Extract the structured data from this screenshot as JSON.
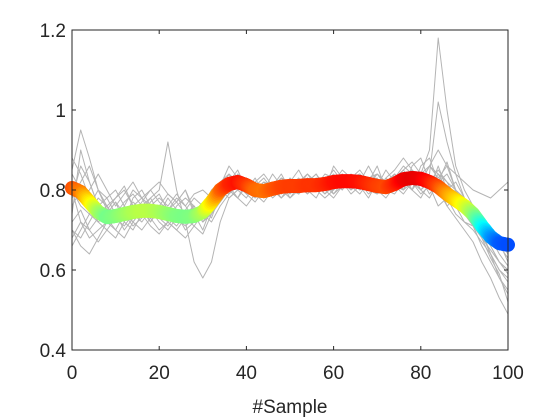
{
  "chart_data": {
    "type": "line",
    "xlabel": "#Sample",
    "ylabel": "",
    "xlim": [
      0,
      100
    ],
    "ylim": [
      0.4,
      1.2
    ],
    "xticks": [
      0,
      20,
      40,
      60,
      80,
      100
    ],
    "yticks": [
      0.4,
      0.6,
      0.8,
      1.0,
      1.2
    ],
    "xtick_labels": [
      "0",
      "20",
      "40",
      "60",
      "80",
      "100"
    ],
    "ytick_labels": [
      "0.4",
      "0.6",
      "0.8",
      "1",
      "1.2"
    ],
    "grid": false,
    "box": true,
    "background_series_color": "#b4b4b4",
    "mean_series": {
      "colormap": "jet (value-mapped)",
      "x": [
        0,
        2,
        4,
        6,
        8,
        10,
        12,
        14,
        16,
        18,
        20,
        22,
        24,
        26,
        28,
        30,
        32,
        34,
        36,
        38,
        40,
        42,
        44,
        46,
        48,
        50,
        52,
        54,
        56,
        58,
        60,
        62,
        64,
        66,
        68,
        70,
        72,
        74,
        76,
        78,
        80,
        82,
        84,
        86,
        88,
        90,
        92,
        94,
        96,
        98,
        100
      ],
      "values": [
        0.805,
        0.795,
        0.77,
        0.745,
        0.732,
        0.735,
        0.74,
        0.745,
        0.748,
        0.748,
        0.745,
        0.74,
        0.735,
        0.733,
        0.735,
        0.745,
        0.77,
        0.8,
        0.815,
        0.82,
        0.812,
        0.8,
        0.797,
        0.803,
        0.808,
        0.81,
        0.81,
        0.812,
        0.812,
        0.815,
        0.82,
        0.822,
        0.822,
        0.82,
        0.815,
        0.81,
        0.807,
        0.815,
        0.827,
        0.83,
        0.828,
        0.82,
        0.808,
        0.79,
        0.775,
        0.76,
        0.74,
        0.71,
        0.683,
        0.667,
        0.663
      ]
    },
    "individual_series": [
      {
        "values": [
          0.74,
          0.9,
          0.82,
          0.76,
          0.74,
          0.77,
          0.72,
          0.78,
          0.8,
          0.76,
          0.74,
          0.78,
          0.75,
          0.73,
          0.76,
          0.72,
          0.75,
          0.81,
          0.86,
          0.83,
          0.8,
          0.79,
          0.81,
          0.82,
          0.79,
          0.83,
          0.8,
          0.82,
          0.84,
          0.8,
          0.86,
          0.83,
          0.8,
          0.83,
          0.82,
          0.86,
          0.8,
          0.82,
          0.84,
          0.8,
          0.86,
          0.88,
          0.82,
          0.87,
          0.8,
          0.75,
          0.76,
          0.72,
          0.7,
          0.68,
          0.66
        ]
      },
      {
        "values": [
          0.8,
          0.72,
          0.68,
          0.7,
          0.72,
          0.7,
          0.74,
          0.71,
          0.73,
          0.75,
          0.72,
          0.7,
          0.73,
          0.71,
          0.73,
          0.76,
          0.78,
          0.8,
          0.79,
          0.82,
          0.8,
          0.78,
          0.8,
          0.79,
          0.82,
          0.8,
          0.79,
          0.81,
          0.83,
          0.8,
          0.82,
          0.84,
          0.81,
          0.83,
          0.8,
          0.79,
          0.82,
          0.84,
          0.8,
          0.82,
          0.79,
          0.81,
          0.76,
          0.78,
          0.74,
          0.72,
          0.71,
          0.66,
          0.62,
          0.58,
          0.55
        ]
      },
      {
        "values": [
          0.85,
          0.95,
          0.88,
          0.8,
          0.76,
          0.72,
          0.76,
          0.8,
          0.78,
          0.74,
          0.76,
          0.79,
          0.77,
          0.74,
          0.72,
          0.74,
          0.79,
          0.82,
          0.8,
          0.84,
          0.82,
          0.8,
          0.82,
          0.8,
          0.83,
          0.82,
          0.8,
          0.83,
          0.81,
          0.84,
          0.83,
          0.81,
          0.84,
          0.8,
          0.82,
          0.83,
          0.8,
          0.82,
          0.85,
          0.87,
          0.84,
          0.9,
          1.18,
          1.0,
          0.86,
          0.8,
          0.76,
          0.7,
          0.64,
          0.6,
          0.57
        ]
      },
      {
        "values": [
          0.7,
          0.66,
          0.64,
          0.68,
          0.72,
          0.74,
          0.7,
          0.73,
          0.76,
          0.72,
          0.75,
          0.73,
          0.71,
          0.74,
          0.76,
          0.73,
          0.77,
          0.79,
          0.81,
          0.78,
          0.82,
          0.79,
          0.81,
          0.78,
          0.8,
          0.83,
          0.81,
          0.79,
          0.82,
          0.8,
          0.81,
          0.83,
          0.8,
          0.84,
          0.81,
          0.79,
          0.81,
          0.83,
          0.85,
          0.82,
          0.8,
          0.78,
          0.82,
          0.76,
          0.73,
          0.7,
          0.67,
          0.62,
          0.58,
          0.53,
          0.49
        ]
      },
      {
        "values": [
          0.78,
          0.82,
          0.86,
          0.8,
          0.75,
          0.78,
          0.81,
          0.76,
          0.73,
          0.77,
          0.79,
          0.75,
          0.77,
          0.8,
          0.75,
          0.72,
          0.74,
          0.78,
          0.83,
          0.8,
          0.78,
          0.82,
          0.8,
          0.84,
          0.81,
          0.79,
          0.82,
          0.8,
          0.78,
          0.82,
          0.85,
          0.82,
          0.8,
          0.82,
          0.86,
          0.82,
          0.8,
          0.84,
          0.82,
          0.8,
          0.78,
          0.82,
          0.79,
          0.81,
          0.79,
          0.76,
          0.74,
          0.72,
          0.69,
          0.66,
          0.63
        ]
      },
      {
        "values": [
          0.66,
          0.7,
          0.74,
          0.72,
          0.7,
          0.73,
          0.71,
          0.74,
          0.72,
          0.75,
          0.73,
          0.71,
          0.74,
          0.7,
          0.72,
          0.74,
          0.72,
          0.76,
          0.79,
          0.81,
          0.79,
          0.77,
          0.8,
          0.82,
          0.79,
          0.81,
          0.83,
          0.8,
          0.82,
          0.79,
          0.81,
          0.84,
          0.8,
          0.82,
          0.8,
          0.82,
          0.79,
          0.83,
          0.81,
          0.84,
          0.8,
          0.82,
          0.8,
          0.76,
          0.78,
          0.74,
          0.71,
          0.68,
          0.63,
          0.59,
          0.52
        ]
      },
      {
        "values": [
          0.88,
          0.84,
          0.78,
          0.74,
          0.76,
          0.72,
          0.74,
          0.77,
          0.75,
          0.72,
          0.76,
          0.74,
          0.72,
          0.75,
          0.78,
          0.76,
          0.73,
          0.79,
          0.82,
          0.85,
          0.8,
          0.83,
          0.79,
          0.81,
          0.84,
          0.8,
          0.82,
          0.84,
          0.81,
          0.79,
          0.82,
          0.8,
          0.84,
          0.82,
          0.79,
          0.81,
          0.85,
          0.82,
          0.8,
          0.86,
          0.88,
          0.82,
          0.85,
          0.82,
          0.78,
          0.76,
          0.73,
          0.68,
          0.65,
          0.62,
          0.6
        ]
      },
      {
        "values": [
          0.72,
          0.75,
          0.7,
          0.67,
          0.7,
          0.68,
          0.72,
          0.7,
          0.74,
          0.71,
          0.69,
          0.72,
          0.7,
          0.73,
          0.71,
          0.69,
          0.74,
          0.77,
          0.8,
          0.78,
          0.81,
          0.79,
          0.77,
          0.8,
          0.78,
          0.81,
          0.79,
          0.82,
          0.8,
          0.78,
          0.8,
          0.83,
          0.81,
          0.79,
          0.82,
          0.8,
          0.78,
          0.81,
          0.79,
          0.82,
          0.84,
          0.8,
          0.86,
          0.8,
          0.76,
          0.72,
          0.7,
          0.67,
          0.64,
          0.6,
          0.58
        ]
      },
      {
        "values": [
          0.82,
          0.78,
          0.8,
          0.84,
          0.8,
          0.76,
          0.79,
          0.82,
          0.78,
          0.8,
          0.82,
          0.79,
          0.77,
          0.8,
          0.74,
          0.7,
          0.76,
          0.8,
          0.78,
          0.8,
          0.83,
          0.81,
          0.78,
          0.82,
          0.8,
          0.82,
          0.85,
          0.81,
          0.83,
          0.8,
          0.78,
          0.81,
          0.83,
          0.85,
          0.82,
          0.8,
          0.83,
          0.81,
          0.8,
          0.84,
          0.82,
          0.86,
          0.84,
          0.8,
          0.82,
          0.78,
          0.74,
          0.7,
          0.68,
          0.64,
          0.61
        ]
      },
      {
        "values": [
          0.76,
          0.8,
          0.76,
          0.72,
          0.74,
          0.77,
          0.74,
          0.72,
          0.75,
          0.73,
          0.76,
          0.73,
          0.75,
          0.72,
          0.74,
          0.76,
          0.79,
          0.78,
          0.81,
          0.83,
          0.82,
          0.8,
          0.82,
          0.81,
          0.78,
          0.8,
          0.82,
          0.79,
          0.81,
          0.83,
          0.79,
          0.81,
          0.82,
          0.8,
          0.83,
          0.81,
          0.82,
          0.8,
          0.83,
          0.85,
          0.83,
          0.81,
          0.84,
          0.82,
          0.8,
          0.78,
          0.76,
          0.73,
          0.7,
          0.67,
          0.62
        ]
      },
      {
        "values": [
          0.7,
          0.68,
          0.72,
          0.76,
          0.73,
          0.7,
          0.68,
          0.72,
          0.75,
          0.78,
          0.74,
          0.72,
          0.7,
          0.68,
          0.71,
          0.74,
          0.76,
          0.8,
          0.84,
          0.82,
          0.79,
          0.81,
          0.83,
          0.8,
          0.78,
          0.81,
          0.79,
          0.82,
          0.84,
          0.81,
          0.79,
          0.82,
          0.8,
          0.83,
          0.81,
          0.84,
          0.82,
          0.8,
          0.82,
          0.8,
          0.83,
          0.79,
          0.82,
          0.84,
          0.8,
          0.76,
          0.72,
          0.69,
          0.66,
          0.62,
          0.6
        ]
      },
      {
        "values": [
          0.84,
          0.8,
          0.76,
          0.8,
          0.78,
          0.8,
          0.76,
          0.74,
          0.77,
          0.8,
          0.77,
          0.75,
          0.78,
          0.76,
          0.79,
          0.8,
          0.78,
          0.81,
          0.79,
          0.82,
          0.8,
          0.82,
          0.84,
          0.81,
          0.83,
          0.8,
          0.82,
          0.8,
          0.83,
          0.82,
          0.84,
          0.8,
          0.83,
          0.81,
          0.83,
          0.84,
          0.82,
          0.84,
          0.82,
          0.8,
          0.84,
          0.86,
          0.83,
          0.86,
          0.84,
          0.82,
          0.8,
          0.79,
          0.78,
          0.8,
          0.82
        ]
      },
      {
        "values": [
          0.68,
          0.72,
          0.7,
          0.73,
          0.76,
          0.73,
          0.75,
          0.72,
          0.7,
          0.73,
          0.7,
          0.72,
          0.76,
          0.78,
          0.76,
          0.72,
          0.75,
          0.77,
          0.8,
          0.78,
          0.76,
          0.79,
          0.82,
          0.8,
          0.82,
          0.78,
          0.8,
          0.83,
          0.8,
          0.82,
          0.8,
          0.82,
          0.79,
          0.81,
          0.78,
          0.82,
          0.8,
          0.79,
          0.82,
          0.84,
          0.8,
          0.83,
          0.8,
          0.78,
          0.8,
          0.76,
          0.74,
          0.7,
          0.66,
          0.62,
          0.59
        ]
      },
      {
        "values": [
          0.78,
          0.86,
          0.82,
          0.76,
          0.78,
          0.74,
          0.77,
          0.79,
          0.76,
          0.78,
          0.8,
          0.92,
          0.8,
          0.72,
          0.62,
          0.58,
          0.62,
          0.72,
          0.78,
          0.8,
          0.82,
          0.8,
          0.78,
          0.8,
          0.82,
          0.79,
          0.81,
          0.8,
          0.82,
          0.8,
          0.8,
          0.84,
          0.82,
          0.8,
          0.82,
          0.84,
          0.81,
          0.83,
          0.86,
          0.84,
          0.82,
          0.86,
          0.9,
          0.86,
          0.8,
          0.76,
          0.73,
          0.69,
          0.64,
          0.58,
          0.54
        ]
      },
      {
        "values": [
          0.8,
          0.76,
          0.74,
          0.78,
          0.76,
          0.78,
          0.8,
          0.76,
          0.78,
          0.76,
          0.78,
          0.76,
          0.79,
          0.76,
          0.73,
          0.76,
          0.8,
          0.82,
          0.84,
          0.8,
          0.83,
          0.81,
          0.79,
          0.82,
          0.8,
          0.78,
          0.81,
          0.84,
          0.82,
          0.8,
          0.82,
          0.85,
          0.83,
          0.84,
          0.82,
          0.8,
          0.83,
          0.85,
          0.88,
          0.85,
          0.82,
          0.84,
          1.02,
          0.92,
          0.84,
          0.78,
          0.75,
          0.72,
          0.7,
          0.67,
          0.64
        ]
      }
    ]
  }
}
